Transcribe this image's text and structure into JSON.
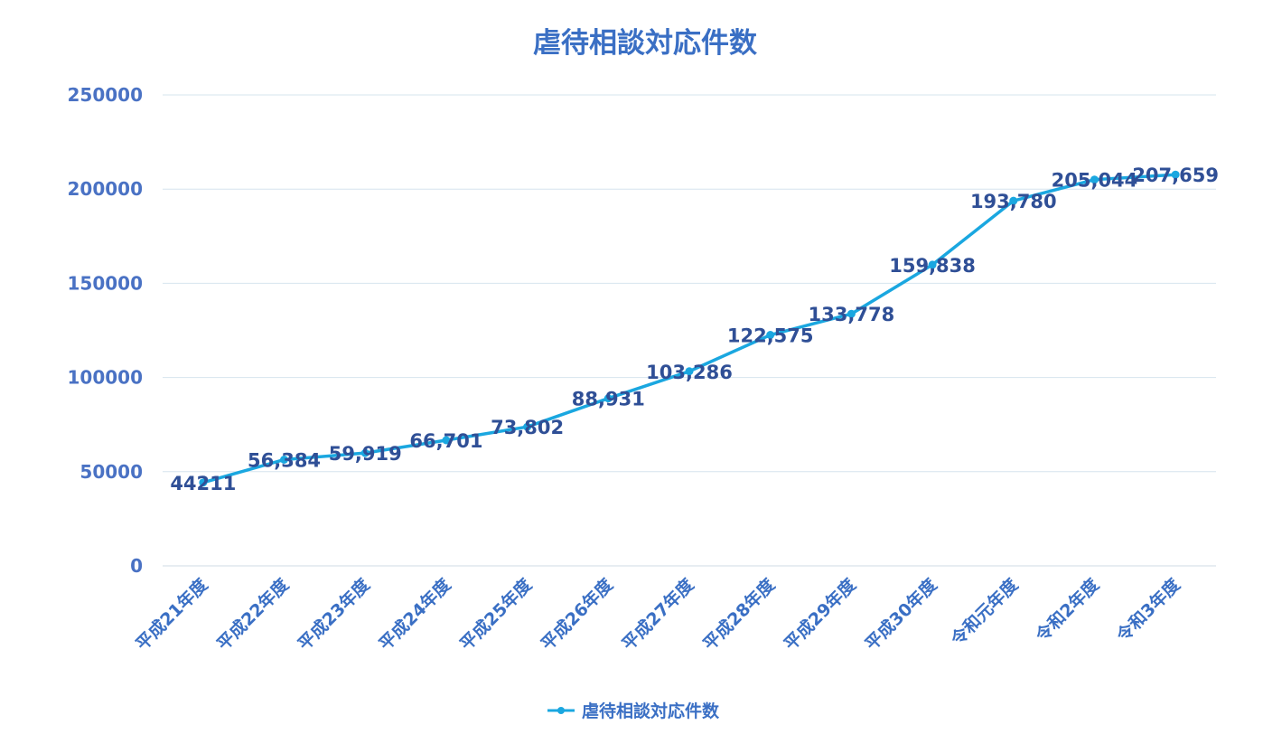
{
  "chart_data": {
    "type": "line",
    "title": "虐待相談対応件数",
    "categories": [
      "平成21年度",
      "平成22年度",
      "平成23年度",
      "平成24年度",
      "平成25年度",
      "平成26年度",
      "平成27年度",
      "平成28年度",
      "平成29年度",
      "平成30年度",
      "令和元年度",
      "令和2年度",
      "令和3年度"
    ],
    "series": [
      {
        "name": "虐待相談対応件数",
        "values": [
          44211,
          56384,
          59919,
          66701,
          73802,
          88931,
          103286,
          122575,
          133778,
          159838,
          193780,
          205044,
          207659
        ],
        "labels": [
          "44211",
          "56,384",
          "59,919",
          "66,701",
          "73,802",
          "88,931",
          "103,286",
          "122,575",
          "133,778",
          "159,838",
          "193,780",
          "205,044",
          "207,659"
        ]
      }
    ],
    "y_ticks": [
      "0",
      "50000",
      "100000",
      "150000",
      "200000",
      "250000"
    ],
    "ylim": [
      0,
      250000
    ],
    "grid": true,
    "legend": "bottom",
    "colors": {
      "line": "#1aa7e0",
      "grid": "#d6e4ee",
      "title": "#3a6fc4",
      "label": "#2f4f96"
    }
  }
}
